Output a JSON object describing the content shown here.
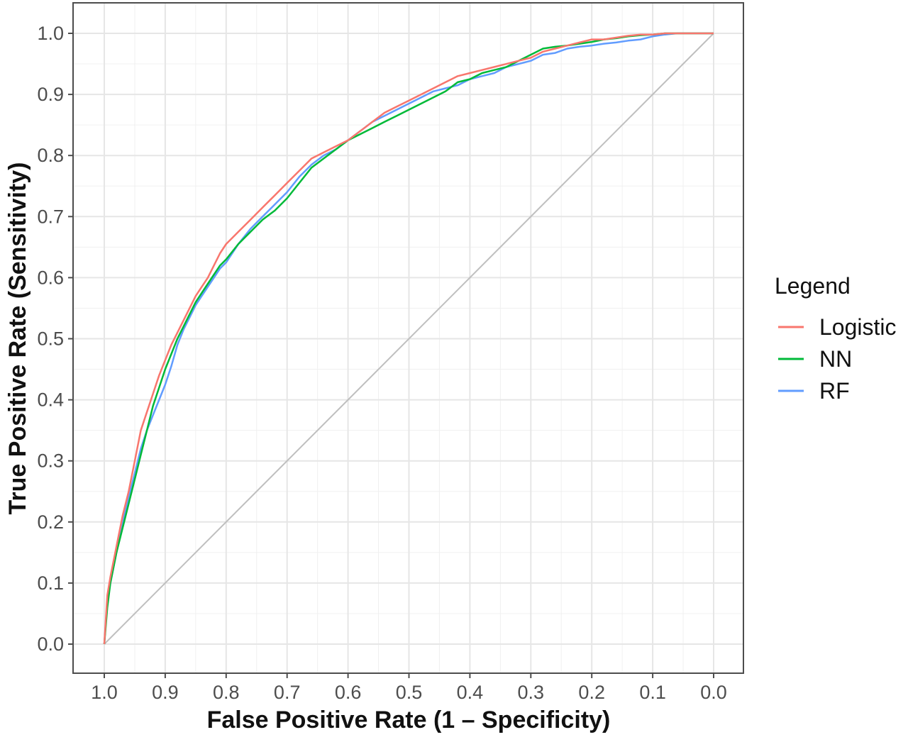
{
  "chart_data": {
    "type": "line",
    "xlabel": "False Positive Rate (1 – Specificity)",
    "ylabel": "True Positive Rate (Sensitivity)",
    "x_axis": "specificity",
    "x_reversed": true,
    "xlim": [
      1.0,
      0.0
    ],
    "ylim": [
      0.0,
      1.0
    ],
    "x_ticks": [
      "1.0",
      "0.9",
      "0.8",
      "0.7",
      "0.6",
      "0.5",
      "0.4",
      "0.3",
      "0.2",
      "0.1",
      "0.0"
    ],
    "y_ticks": [
      "0.0",
      "0.1",
      "0.2",
      "0.3",
      "0.4",
      "0.5",
      "0.6",
      "0.7",
      "0.8",
      "0.9",
      "1.0"
    ],
    "grid": true,
    "legend": {
      "title": "Legend",
      "position": "right"
    },
    "reference_line": {
      "x": [
        1.0,
        0.0
      ],
      "y": [
        0.0,
        1.0
      ],
      "color": "#bfbfbf"
    },
    "series": [
      {
        "name": "Logistic",
        "color": "#F8766D",
        "x": [
          1.0,
          0.995,
          0.99,
          0.98,
          0.97,
          0.96,
          0.95,
          0.94,
          0.93,
          0.92,
          0.91,
          0.9,
          0.89,
          0.88,
          0.87,
          0.86,
          0.85,
          0.84,
          0.83,
          0.82,
          0.81,
          0.8,
          0.78,
          0.76,
          0.74,
          0.72,
          0.7,
          0.68,
          0.66,
          0.64,
          0.62,
          0.6,
          0.58,
          0.56,
          0.54,
          0.52,
          0.5,
          0.48,
          0.46,
          0.44,
          0.42,
          0.4,
          0.38,
          0.36,
          0.34,
          0.32,
          0.3,
          0.28,
          0.26,
          0.24,
          0.22,
          0.2,
          0.18,
          0.16,
          0.14,
          0.12,
          0.1,
          0.08,
          0.06,
          0.04,
          0.02,
          0.0
        ],
        "y": [
          0.0,
          0.08,
          0.11,
          0.16,
          0.21,
          0.25,
          0.3,
          0.35,
          0.38,
          0.41,
          0.44,
          0.465,
          0.49,
          0.51,
          0.53,
          0.55,
          0.57,
          0.585,
          0.6,
          0.62,
          0.64,
          0.655,
          0.675,
          0.695,
          0.715,
          0.735,
          0.755,
          0.775,
          0.795,
          0.805,
          0.815,
          0.825,
          0.84,
          0.855,
          0.87,
          0.88,
          0.89,
          0.9,
          0.91,
          0.92,
          0.93,
          0.935,
          0.94,
          0.945,
          0.95,
          0.955,
          0.96,
          0.97,
          0.975,
          0.98,
          0.985,
          0.99,
          0.99,
          0.993,
          0.996,
          0.998,
          0.998,
          1.0,
          1.0,
          1.0,
          1.0,
          1.0
        ]
      },
      {
        "name": "NN",
        "color": "#00BA38",
        "x": [
          1.0,
          0.995,
          0.99,
          0.98,
          0.97,
          0.96,
          0.95,
          0.94,
          0.93,
          0.92,
          0.91,
          0.9,
          0.89,
          0.88,
          0.87,
          0.86,
          0.85,
          0.84,
          0.83,
          0.82,
          0.81,
          0.8,
          0.78,
          0.76,
          0.74,
          0.72,
          0.7,
          0.68,
          0.66,
          0.64,
          0.62,
          0.6,
          0.58,
          0.56,
          0.54,
          0.52,
          0.5,
          0.48,
          0.46,
          0.44,
          0.42,
          0.4,
          0.38,
          0.36,
          0.34,
          0.32,
          0.3,
          0.28,
          0.26,
          0.24,
          0.22,
          0.2,
          0.18,
          0.16,
          0.14,
          0.12,
          0.1,
          0.08,
          0.06,
          0.04,
          0.02,
          0.0
        ],
        "y": [
          0.0,
          0.06,
          0.1,
          0.15,
          0.19,
          0.23,
          0.27,
          0.31,
          0.35,
          0.39,
          0.42,
          0.45,
          0.475,
          0.5,
          0.52,
          0.54,
          0.56,
          0.575,
          0.59,
          0.605,
          0.62,
          0.63,
          0.655,
          0.675,
          0.695,
          0.71,
          0.73,
          0.755,
          0.78,
          0.795,
          0.81,
          0.825,
          0.835,
          0.845,
          0.855,
          0.865,
          0.875,
          0.885,
          0.895,
          0.905,
          0.92,
          0.925,
          0.935,
          0.94,
          0.945,
          0.955,
          0.965,
          0.975,
          0.978,
          0.98,
          0.983,
          0.986,
          0.99,
          0.992,
          0.995,
          0.997,
          0.998,
          1.0,
          1.0,
          1.0,
          1.0,
          1.0
        ]
      },
      {
        "name": "RF",
        "color": "#619CFF",
        "x": [
          1.0,
          0.995,
          0.99,
          0.98,
          0.97,
          0.96,
          0.95,
          0.94,
          0.93,
          0.92,
          0.91,
          0.9,
          0.89,
          0.88,
          0.87,
          0.86,
          0.85,
          0.84,
          0.83,
          0.82,
          0.81,
          0.8,
          0.78,
          0.76,
          0.74,
          0.72,
          0.7,
          0.68,
          0.66,
          0.64,
          0.62,
          0.6,
          0.58,
          0.56,
          0.54,
          0.52,
          0.5,
          0.48,
          0.46,
          0.44,
          0.42,
          0.4,
          0.38,
          0.36,
          0.34,
          0.32,
          0.3,
          0.28,
          0.26,
          0.24,
          0.22,
          0.2,
          0.18,
          0.16,
          0.14,
          0.12,
          0.1,
          0.08,
          0.06,
          0.04,
          0.02,
          0.0
        ],
        "y": [
          0.0,
          0.07,
          0.1,
          0.15,
          0.2,
          0.24,
          0.28,
          0.32,
          0.35,
          0.375,
          0.4,
          0.425,
          0.455,
          0.49,
          0.515,
          0.535,
          0.555,
          0.57,
          0.585,
          0.6,
          0.615,
          0.625,
          0.655,
          0.68,
          0.7,
          0.72,
          0.74,
          0.765,
          0.785,
          0.8,
          0.81,
          0.825,
          0.84,
          0.855,
          0.865,
          0.875,
          0.885,
          0.895,
          0.905,
          0.91,
          0.915,
          0.925,
          0.93,
          0.935,
          0.945,
          0.95,
          0.955,
          0.965,
          0.968,
          0.975,
          0.978,
          0.98,
          0.983,
          0.985,
          0.988,
          0.99,
          0.995,
          0.998,
          1.0,
          1.0,
          1.0,
          1.0
        ]
      }
    ]
  }
}
